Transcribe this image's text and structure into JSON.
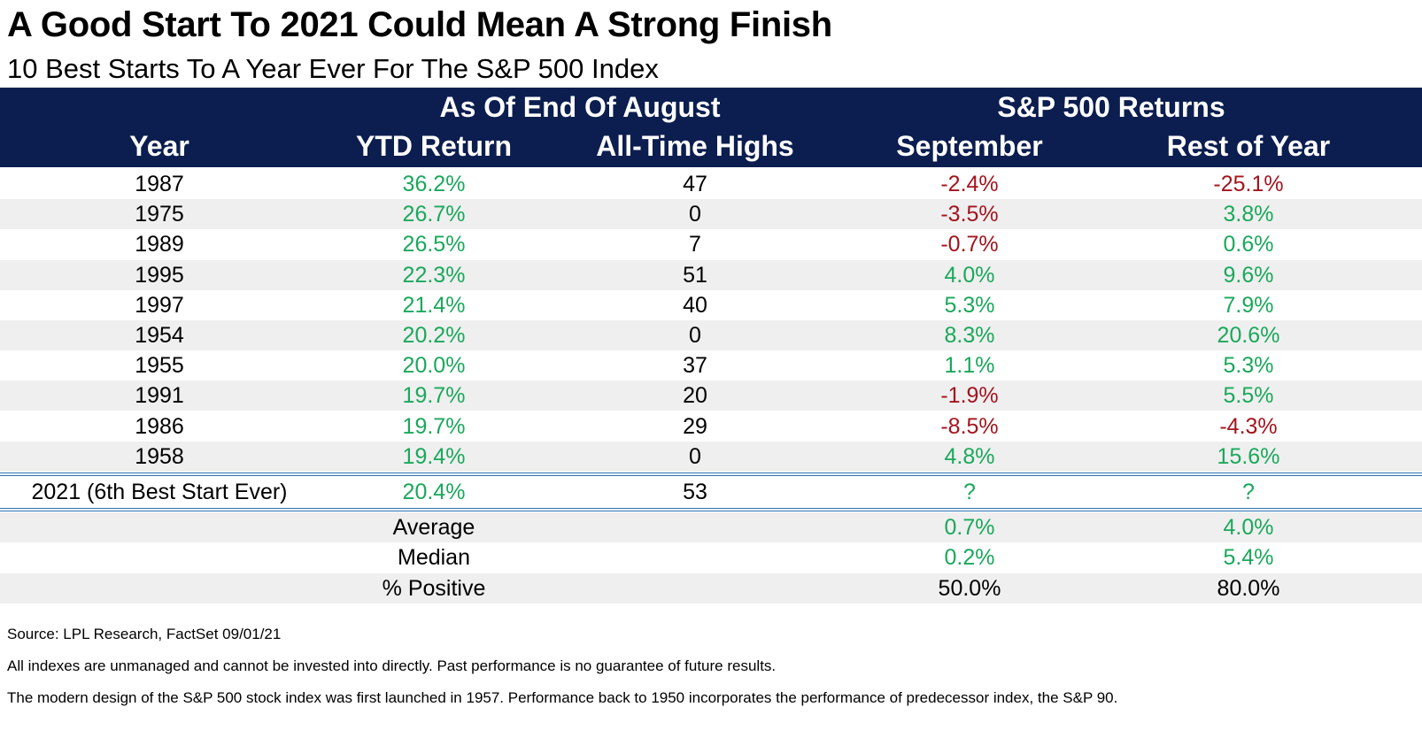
{
  "title": "A Good Start To 2021 Could Mean A Strong Finish",
  "subtitle": "10 Best Starts To A Year Ever For The S&P 500 Index",
  "header": {
    "group1": "As Of End Of August",
    "group2": "S&P 500 Returns",
    "columns": [
      "Year",
      "YTD Return",
      "All-Time Highs",
      "September",
      "Rest of Year"
    ]
  },
  "colors": {
    "header_bg": "#0c1e4f",
    "positive": "#1aa85b",
    "negative": "#a3141e"
  },
  "chart_data": {
    "type": "table",
    "columns": [
      "Year",
      "YTD Return",
      "All-Time Highs",
      "September",
      "Rest of Year"
    ],
    "rows": [
      [
        "1987",
        "36.2%",
        "47",
        "-2.4%",
        "-25.1%"
      ],
      [
        "1975",
        "26.7%",
        "0",
        "-3.5%",
        "3.8%"
      ],
      [
        "1989",
        "26.5%",
        "7",
        "-0.7%",
        "0.6%"
      ],
      [
        "1995",
        "22.3%",
        "51",
        "4.0%",
        "9.6%"
      ],
      [
        "1997",
        "21.4%",
        "40",
        "5.3%",
        "7.9%"
      ],
      [
        "1954",
        "20.2%",
        "0",
        "8.3%",
        "20.6%"
      ],
      [
        "1955",
        "20.0%",
        "37",
        "1.1%",
        "5.3%"
      ],
      [
        "1991",
        "19.7%",
        "20",
        "-1.9%",
        "5.5%"
      ],
      [
        "1986",
        "19.7%",
        "29",
        "-8.5%",
        "-4.3%"
      ],
      [
        "1958",
        "19.4%",
        "0",
        "4.8%",
        "15.6%"
      ]
    ],
    "current": [
      "2021 (6th Best Start Ever)",
      "20.4%",
      "53",
      "?",
      "?"
    ],
    "summary": [
      [
        "Average",
        "0.7%",
        "4.0%"
      ],
      [
        "Median",
        "0.2%",
        "5.4%"
      ],
      [
        "% Positive",
        "50.0%",
        "80.0%"
      ]
    ]
  },
  "footnotes": [
    "Source: LPL Research, FactSet 09/01/21",
    "All indexes are unmanaged and cannot be invested into directly. Past performance is no guarantee of future results.",
    "The modern design of the S&P 500 stock index was first launched in 1957. Performance back to 1950 incorporates the performance of predecessor index, the S&P 90."
  ]
}
